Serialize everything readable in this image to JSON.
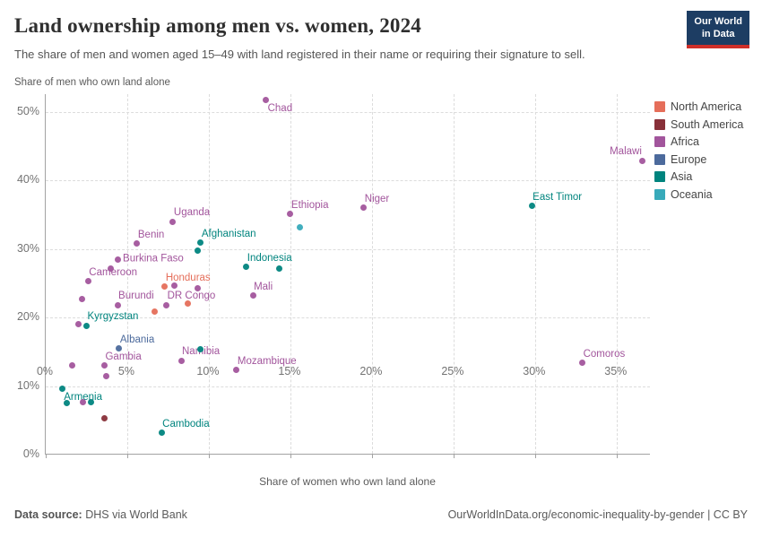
{
  "header": {
    "title": "Land ownership among men vs. women, 2024",
    "subtitle": "The share of men and women aged 15–49 with land registered in their name or requiring their signature to sell.",
    "logo_line1": "Our World",
    "logo_line2": "in Data",
    "logo_bg": "#1d3d63",
    "logo_stripe": "#cf2f29"
  },
  "footer": {
    "source_label": "Data source:",
    "source_text": " DHS via World Bank",
    "link_text": "OurWorldInData.org/economic-inequality-by-gender | CC BY"
  },
  "chart_data": {
    "type": "scatter",
    "title": "Land ownership among men vs. women, 2024",
    "xlabel": "Share of women who own land alone",
    "ylabel": "Share of men who own land alone",
    "xlim": [
      0,
      37.1
    ],
    "ylim": [
      0,
      52.6
    ],
    "x_grid_values": [
      5,
      10,
      15,
      20,
      25,
      30,
      35
    ],
    "x_tick_values": [
      0,
      5,
      10,
      15,
      20,
      25,
      30,
      35
    ],
    "x_tick_labels": [
      "0%",
      "5%",
      "10%",
      "15%",
      "20%",
      "25%",
      "30%",
      "35%"
    ],
    "y_tick_values": [
      0,
      10,
      20,
      30,
      40,
      50
    ],
    "y_tick_labels": [
      "0%",
      "10%",
      "20%",
      "30%",
      "40%",
      "50%"
    ],
    "grid": true,
    "legend_position": "top-right",
    "colors": {
      "North America": "#e56e5a",
      "South America": "#883039",
      "Africa": "#a2559c",
      "Europe": "#4c6a9c",
      "Asia": "#00847e",
      "Oceania": "#38aaba"
    },
    "legend": [
      {
        "label": "North America"
      },
      {
        "label": "South America"
      },
      {
        "label": "Africa"
      },
      {
        "label": "Europe"
      },
      {
        "label": "Asia"
      },
      {
        "label": "Oceania"
      }
    ],
    "points": [
      {
        "name": "Chad",
        "continent": "Africa",
        "x": 13.5,
        "y": 51.7,
        "label_pos": "below-right"
      },
      {
        "name": "Malawi",
        "continent": "Africa",
        "x": 36.6,
        "y": 42.9,
        "label_pos": "above-left"
      },
      {
        "name": "East Timor",
        "continent": "Asia",
        "x": 29.8,
        "y": 36.3,
        "label_pos": "above-right"
      },
      {
        "name": "Niger",
        "continent": "Africa",
        "x": 19.5,
        "y": 36.0,
        "label_pos": "above-right"
      },
      {
        "name": "Ethiopia",
        "continent": "Africa",
        "x": 15.0,
        "y": 35.1,
        "label_pos": "above-right"
      },
      {
        "name": "Uganda",
        "continent": "Africa",
        "x": 7.8,
        "y": 34.0,
        "label_pos": "above-right"
      },
      {
        "name": "Afghanistan",
        "continent": "Asia",
        "x": 9.5,
        "y": 30.9,
        "label_pos": "above-right"
      },
      {
        "name": "Benin",
        "continent": "Africa",
        "x": 5.6,
        "y": 30.8,
        "label_pos": "above-right"
      },
      {
        "name": "Burkina Faso",
        "continent": "Africa",
        "x": 4.4,
        "y": 28.5,
        "label_pos": "right"
      },
      {
        "name": "Indonesia",
        "continent": "Asia",
        "x": 12.3,
        "y": 27.4,
        "label_pos": "above-right"
      },
      {
        "name": "Cameroon",
        "continent": "Africa",
        "x": 2.6,
        "y": 25.3,
        "label_pos": "above-right"
      },
      {
        "name": "Honduras",
        "continent": "North America",
        "x": 7.3,
        "y": 24.5,
        "label_pos": "above-right"
      },
      {
        "name": "Mali",
        "continent": "Africa",
        "x": 12.7,
        "y": 23.2,
        "label_pos": "above-right"
      },
      {
        "name": "Burundi",
        "continent": "Africa",
        "x": 4.4,
        "y": 21.8,
        "label_pos": "above-right"
      },
      {
        "name": "DR Congo",
        "continent": "Africa",
        "x": 7.4,
        "y": 21.8,
        "label_pos": "above-right"
      },
      {
        "name": "Kyrgyzstan",
        "continent": "Asia",
        "x": 2.5,
        "y": 18.8,
        "label_pos": "above-right"
      },
      {
        "name": "Albania",
        "continent": "Europe",
        "x": 4.5,
        "y": 15.5,
        "label_pos": "above-right"
      },
      {
        "name": "Namibia",
        "continent": "Africa",
        "x": 8.3,
        "y": 13.7,
        "label_pos": "above-right"
      },
      {
        "name": "Gambia",
        "continent": "Africa",
        "x": 3.6,
        "y": 13.0,
        "label_pos": "above-right"
      },
      {
        "name": "Mozambique",
        "continent": "Africa",
        "x": 11.7,
        "y": 12.3,
        "label_pos": "above-right"
      },
      {
        "name": "Comoros",
        "continent": "Africa",
        "x": 32.9,
        "y": 13.4,
        "label_pos": "above-right"
      },
      {
        "name": "Armenia",
        "continent": "Asia",
        "x": 1.0,
        "y": 9.6,
        "label_pos": "below-right"
      },
      {
        "name": "Cambodia",
        "continent": "Asia",
        "x": 7.1,
        "y": 3.2,
        "label_pos": "above-right"
      },
      {
        "name": null,
        "continent": "Oceania",
        "x": 15.6,
        "y": 33.2
      },
      {
        "name": null,
        "continent": "Asia",
        "x": 9.3,
        "y": 29.8
      },
      {
        "name": null,
        "continent": "Africa",
        "x": 4.0,
        "y": 27.1
      },
      {
        "name": null,
        "continent": "Asia",
        "x": 14.3,
        "y": 27.2
      },
      {
        "name": null,
        "continent": "Africa",
        "x": 7.9,
        "y": 24.7
      },
      {
        "name": null,
        "continent": "Africa",
        "x": 9.3,
        "y": 24.3
      },
      {
        "name": null,
        "continent": "Africa",
        "x": 2.2,
        "y": 22.7
      },
      {
        "name": null,
        "continent": "North America",
        "x": 8.7,
        "y": 22.0
      },
      {
        "name": null,
        "continent": "North America",
        "x": 6.7,
        "y": 20.9
      },
      {
        "name": null,
        "continent": "Africa",
        "x": 2.0,
        "y": 19.0
      },
      {
        "name": null,
        "continent": "Asia",
        "x": 9.5,
        "y": 15.4
      },
      {
        "name": null,
        "continent": "Africa",
        "x": 1.6,
        "y": 13.0
      },
      {
        "name": null,
        "continent": "Africa",
        "x": 3.7,
        "y": 11.4
      },
      {
        "name": null,
        "continent": "Asia",
        "x": 1.3,
        "y": 7.5
      },
      {
        "name": null,
        "continent": "Africa",
        "x": 2.3,
        "y": 7.7
      },
      {
        "name": null,
        "continent": "Asia",
        "x": 2.8,
        "y": 7.6
      },
      {
        "name": null,
        "continent": "South America",
        "x": 3.6,
        "y": 5.3
      }
    ]
  }
}
